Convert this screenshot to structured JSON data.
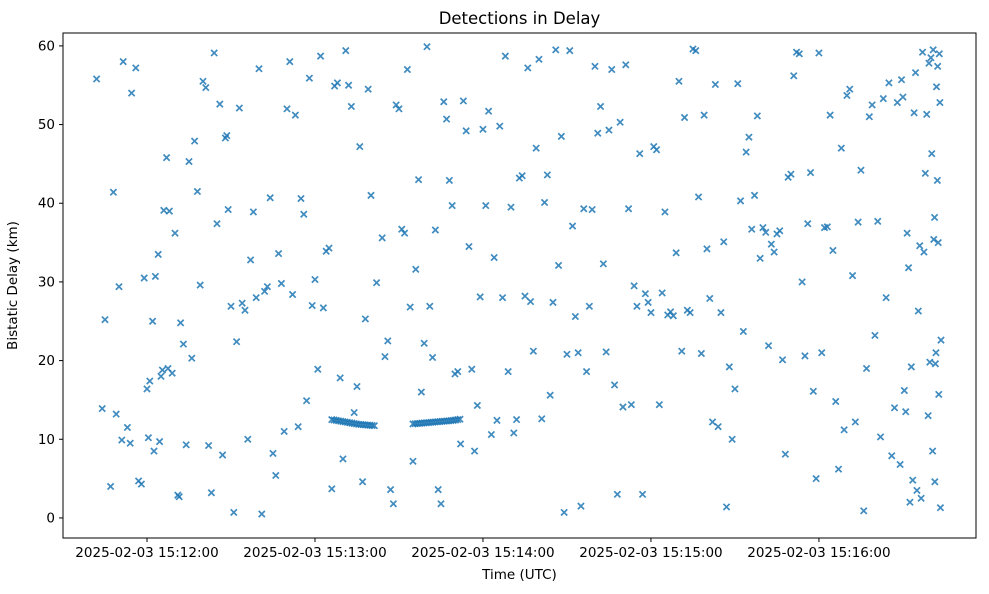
{
  "chart_data": {
    "type": "scatter",
    "title": "Detections in Delay",
    "xlabel": "Time (UTC)",
    "ylabel": "Bistatic Delay (km)",
    "marker": "x",
    "marker_color": "#1f77b4",
    "grid": false,
    "time_reference": "2025-02-03 15:12:00",
    "x_axis": {
      "tick_labels": [
        "2025-02-03 15:12:00",
        "2025-02-03 15:13:00",
        "2025-02-03 15:14:00",
        "2025-02-03 15:15:00",
        "2025-02-03 15:16:00"
      ],
      "tick_seconds": [
        0,
        60,
        120,
        180,
        240
      ],
      "range_seconds": [
        -30.0,
        296.1
      ]
    },
    "y_axis": {
      "ticks": [
        0,
        10,
        20,
        30,
        40,
        50,
        60
      ],
      "range": [
        -2.55,
        61.64
      ]
    },
    "points_t_seconds_delay_km": [
      [
        -18,
        55.8
      ],
      [
        -16,
        13.9
      ],
      [
        -15,
        25.2
      ],
      [
        -13,
        4.0
      ],
      [
        -12,
        41.4
      ],
      [
        -11,
        13.2
      ],
      [
        -10,
        29.4
      ],
      [
        -9,
        9.9
      ],
      [
        -8.5,
        58.0
      ],
      [
        -7,
        11.5
      ],
      [
        -6,
        9.5
      ],
      [
        -5.5,
        54.0
      ],
      [
        -4,
        57.2
      ],
      [
        -3,
        4.7
      ],
      [
        -2,
        4.3
      ],
      [
        -1,
        30.5
      ],
      [
        0,
        16.4
      ],
      [
        0.5,
        10.2
      ],
      [
        1,
        17.4
      ],
      [
        2,
        25.0
      ],
      [
        2.5,
        8.5
      ],
      [
        3,
        30.7
      ],
      [
        4,
        33.5
      ],
      [
        4.5,
        9.7
      ],
      [
        5,
        18.0
      ],
      [
        5.5,
        18.8
      ],
      [
        6,
        39.1
      ],
      [
        7,
        45.8
      ],
      [
        7.5,
        19.0
      ],
      [
        8,
        39.0
      ],
      [
        9,
        18.4
      ],
      [
        10,
        36.2
      ],
      [
        11,
        2.9
      ],
      [
        11.5,
        2.7
      ],
      [
        12,
        24.8
      ],
      [
        13,
        22.1
      ],
      [
        14,
        9.3
      ],
      [
        15,
        45.3
      ],
      [
        16,
        20.3
      ],
      [
        17,
        47.9
      ],
      [
        18,
        41.5
      ],
      [
        19,
        29.6
      ],
      [
        20,
        55.5
      ],
      [
        21,
        54.7
      ],
      [
        22,
        9.2
      ],
      [
        23,
        3.2
      ],
      [
        24,
        59.1
      ],
      [
        25,
        37.4
      ],
      [
        26,
        52.6
      ],
      [
        27,
        8.0
      ],
      [
        28,
        48.3
      ],
      [
        28.5,
        48.6
      ],
      [
        29,
        39.2
      ],
      [
        30,
        26.9
      ],
      [
        31,
        0.7
      ],
      [
        32,
        22.4
      ],
      [
        33,
        52.1
      ],
      [
        34,
        27.3
      ],
      [
        35,
        26.4
      ],
      [
        36,
        10.0
      ],
      [
        37,
        32.8
      ],
      [
        38,
        38.9
      ],
      [
        39,
        28.0
      ],
      [
        40,
        57.1
      ],
      [
        41,
        0.5
      ],
      [
        42,
        28.8
      ],
      [
        43,
        29.4
      ],
      [
        44,
        40.7
      ],
      [
        45,
        8.2
      ],
      [
        46,
        5.4
      ],
      [
        47,
        33.6
      ],
      [
        48,
        29.8
      ],
      [
        49,
        11.0
      ],
      [
        50,
        52.0
      ],
      [
        51,
        58.0
      ],
      [
        52,
        28.4
      ],
      [
        53,
        51.2
      ],
      [
        54,
        11.6
      ],
      [
        55,
        40.6
      ],
      [
        56,
        38.6
      ],
      [
        57,
        14.9
      ],
      [
        58,
        55.9
      ],
      [
        59,
        27.0
      ],
      [
        60,
        30.3
      ],
      [
        61,
        18.9
      ],
      [
        62,
        58.7
      ],
      [
        63,
        26.7
      ],
      [
        64,
        33.9
      ],
      [
        65,
        34.3
      ],
      [
        66,
        3.7
      ],
      [
        67,
        54.9
      ],
      [
        68,
        55.3
      ],
      [
        69,
        17.8
      ],
      [
        70,
        7.5
      ],
      [
        71,
        59.4
      ],
      [
        72,
        55.0
      ],
      [
        73,
        52.3
      ],
      [
        74,
        13.4
      ],
      [
        75,
        16.7
      ],
      [
        76,
        47.2
      ],
      [
        77,
        4.6
      ],
      [
        78,
        25.3
      ],
      [
        79,
        54.5
      ],
      [
        80,
        41.0
      ],
      [
        82,
        29.9
      ],
      [
        84,
        35.6
      ],
      [
        85,
        20.5
      ],
      [
        86,
        22.5
      ],
      [
        87,
        3.6
      ],
      [
        88,
        1.8
      ],
      [
        89,
        52.5
      ],
      [
        90,
        52.0
      ],
      [
        91,
        36.7
      ],
      [
        92,
        36.2
      ],
      [
        93,
        57.0
      ],
      [
        94,
        26.8
      ],
      [
        95,
        7.2
      ],
      [
        66,
        12.5
      ],
      [
        66.8,
        12.45
      ],
      [
        67.6,
        12.4
      ],
      [
        68.4,
        12.35
      ],
      [
        69.2,
        12.3
      ],
      [
        70,
        12.25
      ],
      [
        70.8,
        12.2
      ],
      [
        71.6,
        12.15
      ],
      [
        72.4,
        12.1
      ],
      [
        73.2,
        12.05
      ],
      [
        74,
        12.0
      ],
      [
        74.8,
        11.95
      ],
      [
        75.6,
        11.9
      ],
      [
        76.4,
        11.88
      ],
      [
        77.2,
        11.85
      ],
      [
        78,
        11.82
      ],
      [
        78.8,
        11.8
      ],
      [
        79.6,
        11.78
      ],
      [
        80.4,
        11.75
      ],
      [
        81.2,
        11.72
      ],
      [
        96,
        31.6
      ],
      [
        97,
        43.0
      ],
      [
        98,
        16.0
      ],
      [
        99,
        22.2
      ],
      [
        100,
        59.9
      ],
      [
        101,
        26.9
      ],
      [
        102,
        20.4
      ],
      [
        103,
        36.6
      ],
      [
        104,
        3.6
      ],
      [
        105,
        1.8
      ],
      [
        106,
        52.9
      ],
      [
        107,
        50.7
      ],
      [
        108,
        42.9
      ],
      [
        109,
        39.7
      ],
      [
        110,
        18.3
      ],
      [
        111,
        18.6
      ],
      [
        112,
        9.4
      ],
      [
        95,
        11.95
      ],
      [
        95.8,
        11.98
      ],
      [
        96.6,
        12.0
      ],
      [
        97.4,
        12.02
      ],
      [
        98.2,
        12.05
      ],
      [
        99,
        12.08
      ],
      [
        99.8,
        12.1
      ],
      [
        100.6,
        12.12
      ],
      [
        101.4,
        12.15
      ],
      [
        102.2,
        12.18
      ],
      [
        103,
        12.2
      ],
      [
        103.8,
        12.22
      ],
      [
        104.6,
        12.25
      ],
      [
        105.4,
        12.28
      ],
      [
        106.2,
        12.3
      ],
      [
        107,
        12.32
      ],
      [
        107.8,
        12.35
      ],
      [
        108.6,
        12.38
      ],
      [
        109.4,
        12.4
      ],
      [
        110.2,
        12.45
      ],
      [
        111,
        12.5
      ],
      [
        111.8,
        12.55
      ],
      [
        113,
        53.0
      ],
      [
        114,
        49.2
      ],
      [
        115,
        34.5
      ],
      [
        116,
        18.9
      ],
      [
        117,
        8.5
      ],
      [
        118,
        14.3
      ],
      [
        119,
        28.1
      ],
      [
        120,
        49.4
      ],
      [
        121,
        39.7
      ],
      [
        122,
        51.7
      ],
      [
        123,
        10.6
      ],
      [
        124,
        33.1
      ],
      [
        125,
        12.4
      ],
      [
        126,
        49.8
      ],
      [
        127,
        28.0
      ],
      [
        128,
        58.7
      ],
      [
        129,
        18.6
      ],
      [
        130,
        39.5
      ],
      [
        131,
        10.8
      ],
      [
        132,
        12.5
      ],
      [
        133,
        43.2
      ],
      [
        134,
        43.5
      ],
      [
        135,
        28.2
      ],
      [
        136,
        57.2
      ],
      [
        137,
        27.5
      ],
      [
        138,
        21.2
      ],
      [
        139,
        47.0
      ],
      [
        140,
        58.3
      ],
      [
        141,
        12.6
      ],
      [
        142,
        40.1
      ],
      [
        143,
        43.6
      ],
      [
        144,
        15.6
      ],
      [
        145,
        27.4
      ],
      [
        146,
        59.5
      ],
      [
        147,
        32.1
      ],
      [
        148,
        48.5
      ],
      [
        149,
        0.7
      ],
      [
        150,
        20.8
      ],
      [
        151,
        59.4
      ],
      [
        152,
        37.1
      ],
      [
        153,
        25.6
      ],
      [
        154,
        21.0
      ],
      [
        155,
        1.5
      ],
      [
        156,
        39.3
      ],
      [
        157,
        18.6
      ],
      [
        158,
        26.9
      ],
      [
        159,
        39.2
      ],
      [
        160,
        57.4
      ],
      [
        161,
        48.9
      ],
      [
        162,
        52.3
      ],
      [
        163,
        32.3
      ],
      [
        164,
        21.1
      ],
      [
        165,
        49.3
      ],
      [
        166,
        57.0
      ],
      [
        167,
        16.9
      ],
      [
        168,
        3.0
      ],
      [
        169,
        50.3
      ],
      [
        170,
        14.1
      ],
      [
        171,
        57.6
      ],
      [
        172,
        39.3
      ],
      [
        173,
        14.4
      ],
      [
        174,
        29.5
      ],
      [
        175,
        26.9
      ],
      [
        176,
        46.3
      ],
      [
        177,
        3.0
      ],
      [
        178,
        28.5
      ],
      [
        179,
        27.4
      ],
      [
        180,
        26.1
      ],
      [
        181,
        47.2
      ],
      [
        182,
        46.8
      ],
      [
        183,
        14.4
      ],
      [
        184,
        28.6
      ],
      [
        185,
        38.9
      ],
      [
        186,
        25.8
      ],
      [
        187,
        26.2
      ],
      [
        188,
        25.7
      ],
      [
        189,
        33.7
      ],
      [
        190,
        55.5
      ],
      [
        191,
        21.2
      ],
      [
        192,
        50.9
      ],
      [
        193,
        26.4
      ],
      [
        194,
        26.1
      ],
      [
        195,
        59.6
      ],
      [
        196,
        59.4
      ],
      [
        197,
        40.8
      ],
      [
        198,
        20.9
      ],
      [
        199,
        51.2
      ],
      [
        200,
        34.2
      ],
      [
        201,
        27.9
      ],
      [
        202,
        12.2
      ],
      [
        203,
        55.1
      ],
      [
        204,
        11.6
      ],
      [
        205,
        26.1
      ],
      [
        206,
        35.1
      ],
      [
        207,
        1.4
      ],
      [
        208,
        19.2
      ],
      [
        209,
        10.0
      ],
      [
        210,
        16.4
      ],
      [
        211,
        55.2
      ],
      [
        212,
        40.3
      ],
      [
        213,
        23.7
      ],
      [
        214,
        46.5
      ],
      [
        215,
        48.4
      ],
      [
        216,
        36.7
      ],
      [
        217,
        41.0
      ],
      [
        218,
        51.1
      ],
      [
        219,
        33.0
      ],
      [
        220,
        36.9
      ],
      [
        221,
        36.3
      ],
      [
        222,
        21.9
      ],
      [
        223,
        34.8
      ],
      [
        224,
        33.8
      ],
      [
        225,
        36.1
      ],
      [
        226,
        36.5
      ],
      [
        227,
        20.1
      ],
      [
        228,
        8.1
      ],
      [
        229,
        43.3
      ],
      [
        230,
        43.7
      ],
      [
        231,
        56.2
      ],
      [
        232,
        59.2
      ],
      [
        233,
        59.0
      ],
      [
        234,
        30.0
      ],
      [
        235,
        20.6
      ],
      [
        236,
        37.4
      ],
      [
        237,
        43.9
      ],
      [
        238,
        16.1
      ],
      [
        239,
        5.0
      ],
      [
        240,
        59.1
      ],
      [
        241,
        21.0
      ],
      [
        242,
        36.9
      ],
      [
        243,
        37.0
      ],
      [
        244,
        51.2
      ],
      [
        245,
        34.0
      ],
      [
        246,
        14.8
      ],
      [
        247,
        6.2
      ],
      [
        248,
        47.0
      ],
      [
        249,
        11.2
      ],
      [
        250,
        53.7
      ],
      [
        251,
        54.5
      ],
      [
        252,
        30.8
      ],
      [
        253,
        12.2
      ],
      [
        254,
        37.6
      ],
      [
        255,
        44.2
      ],
      [
        256,
        0.9
      ],
      [
        257,
        19.0
      ],
      [
        258,
        51.0
      ],
      [
        259,
        52.5
      ],
      [
        260,
        23.2
      ],
      [
        261,
        37.7
      ],
      [
        262,
        10.3
      ],
      [
        263,
        53.3
      ],
      [
        264,
        28.0
      ],
      [
        265,
        55.3
      ],
      [
        266,
        7.9
      ],
      [
        267,
        14.0
      ],
      [
        268,
        52.8
      ],
      [
        269,
        6.8
      ],
      [
        269.5,
        55.7
      ],
      [
        270,
        53.5
      ],
      [
        270.5,
        16.2
      ],
      [
        271,
        13.5
      ],
      [
        271.5,
        36.2
      ],
      [
        272,
        31.8
      ],
      [
        272.5,
        2.0
      ],
      [
        273,
        19.2
      ],
      [
        273.5,
        4.8
      ],
      [
        274,
        51.5
      ],
      [
        274.5,
        56.6
      ],
      [
        275,
        3.5
      ],
      [
        275.5,
        26.3
      ],
      [
        276,
        34.6
      ],
      [
        276.5,
        2.5
      ],
      [
        277,
        59.2
      ],
      [
        277.5,
        33.8
      ],
      [
        278,
        43.8
      ],
      [
        278.5,
        51.3
      ],
      [
        279,
        13.0
      ],
      [
        279.3,
        57.8
      ],
      [
        279.6,
        19.8
      ],
      [
        280,
        58.5
      ],
      [
        280.3,
        46.3
      ],
      [
        280.6,
        8.5
      ],
      [
        281,
        35.4
      ],
      [
        281.3,
        38.2
      ],
      [
        281.6,
        19.6
      ],
      [
        282,
        54.8
      ],
      [
        282.3,
        42.9
      ],
      [
        282.6,
        35.0
      ],
      [
        283,
        59.0
      ],
      [
        282.8,
        15.7
      ],
      [
        281.8,
        21.0
      ],
      [
        280.8,
        59.5
      ],
      [
        283.2,
        52.8
      ],
      [
        283.4,
        1.3
      ],
      [
        282.4,
        57.4
      ],
      [
        283.6,
        22.6
      ],
      [
        281.4,
        4.6
      ]
    ]
  }
}
